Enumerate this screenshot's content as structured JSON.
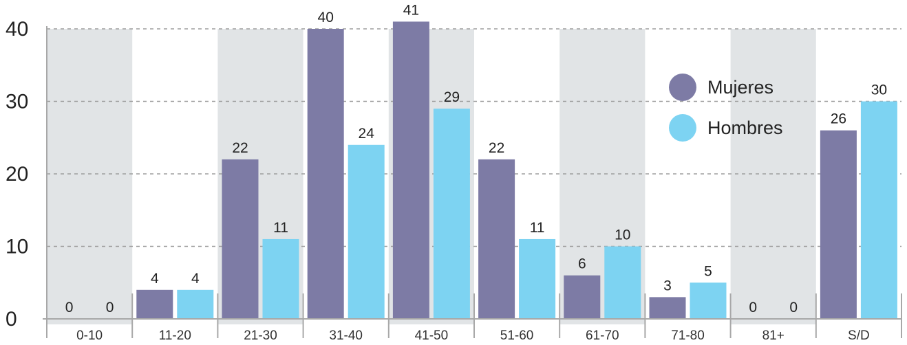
{
  "chart_data": {
    "type": "bar",
    "title": "",
    "xlabel": "",
    "ylabel": "",
    "categories": [
      "0-10",
      "11-20",
      "21-30",
      "31-40",
      "41-50",
      "51-60",
      "61-70",
      "71-80",
      "81+",
      "S/D"
    ],
    "series": [
      {
        "name": "Mujeres",
        "color": "#7d7ba5",
        "values": [
          0,
          4,
          22,
          40,
          41,
          22,
          6,
          3,
          0,
          26
        ]
      },
      {
        "name": "Hombres",
        "color": "#7dd3f2",
        "values": [
          0,
          4,
          11,
          24,
          29,
          11,
          10,
          5,
          0,
          30
        ]
      }
    ],
    "ylim": [
      0,
      40
    ],
    "yticks": [
      0,
      10,
      20,
      30,
      40
    ],
    "grid": true,
    "legend_position": "top-right",
    "shaded_band_color": "#e1e4e6",
    "shaded_categories": [
      "0-10",
      "21-30",
      "41-50",
      "61-70",
      "81+"
    ]
  }
}
